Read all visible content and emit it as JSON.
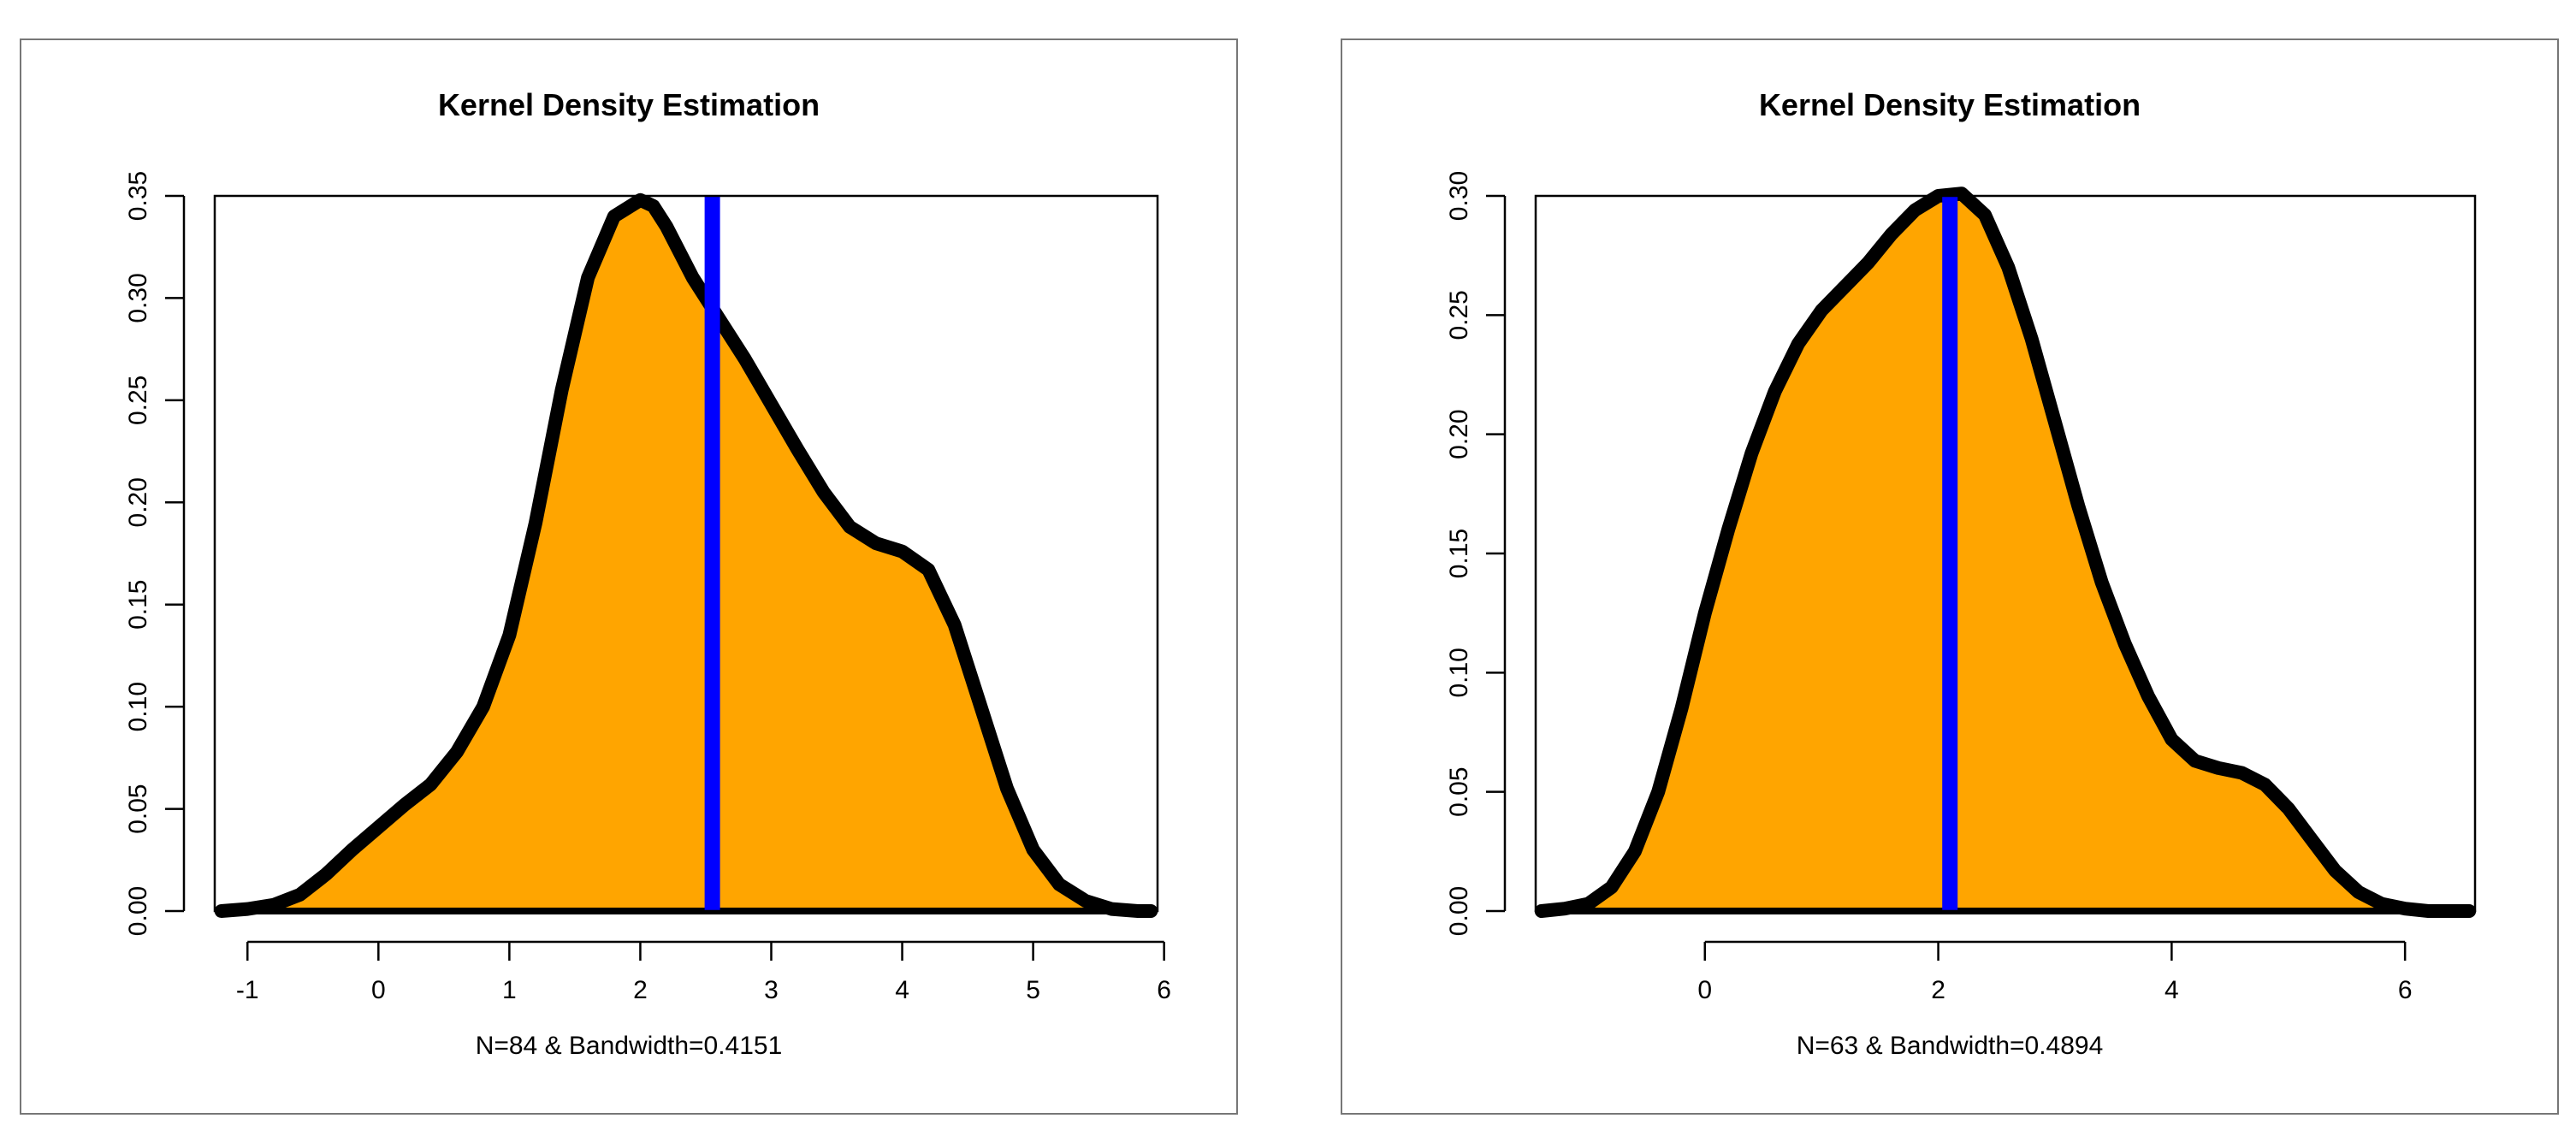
{
  "chart_data": [
    {
      "type": "area",
      "title": "Kernel Density Estimation",
      "xlabel": "N=84 & Bandwidth=0.4151",
      "ylabel": "",
      "xlim": [
        -1.25,
        5.95
      ],
      "ylim": [
        0,
        0.35
      ],
      "xticks": [
        -1,
        0,
        1,
        2,
        3,
        4,
        5,
        6
      ],
      "xtick_labels": [
        "-1",
        "0",
        "1",
        "2",
        "3",
        "4",
        "5",
        "6"
      ],
      "yticks": [
        0.0,
        0.05,
        0.1,
        0.15,
        0.2,
        0.25,
        0.3,
        0.35
      ],
      "ytick_labels": [
        "0.00",
        "0.05",
        "0.10",
        "0.15",
        "0.20",
        "0.25",
        "0.30",
        "0.35"
      ],
      "grid": false,
      "fill_color": "#FFA500",
      "line_color": "#000000",
      "vline_color": "#0000FF",
      "vline_x": 2.55,
      "series": [
        {
          "name": "density",
          "x": [
            -1.2,
            -1.0,
            -0.8,
            -0.6,
            -0.4,
            -0.2,
            0.0,
            0.2,
            0.4,
            0.6,
            0.8,
            1.0,
            1.2,
            1.4,
            1.6,
            1.8,
            2.0,
            2.1,
            2.2,
            2.4,
            2.6,
            2.8,
            3.0,
            3.2,
            3.4,
            3.6,
            3.8,
            4.0,
            4.2,
            4.4,
            4.6,
            4.8,
            5.0,
            5.2,
            5.4,
            5.6,
            5.8,
            5.9
          ],
          "y": [
            0.0,
            0.001,
            0.003,
            0.008,
            0.018,
            0.03,
            0.041,
            0.052,
            0.062,
            0.078,
            0.1,
            0.135,
            0.19,
            0.255,
            0.31,
            0.34,
            0.348,
            0.345,
            0.335,
            0.31,
            0.29,
            0.27,
            0.248,
            0.226,
            0.205,
            0.188,
            0.18,
            0.176,
            0.167,
            0.14,
            0.1,
            0.06,
            0.03,
            0.013,
            0.005,
            0.001,
            0.0,
            0.0
          ]
        }
      ]
    },
    {
      "type": "area",
      "title": "Kernel Density Estimation",
      "xlabel": "N=63 & Bandwidth=0.4894",
      "ylabel": "",
      "xlim": [
        -1.45,
        6.6
      ],
      "ylim": [
        0,
        0.3
      ],
      "xticks": [
        0,
        2,
        4,
        6
      ],
      "xtick_labels": [
        "0",
        "2",
        "4",
        "6"
      ],
      "yticks": [
        0.0,
        0.05,
        0.1,
        0.15,
        0.2,
        0.25,
        0.3
      ],
      "ytick_labels": [
        "0.00",
        "0.05",
        "0.10",
        "0.15",
        "0.20",
        "0.25",
        "0.30"
      ],
      "grid": false,
      "fill_color": "#FFA500",
      "line_color": "#000000",
      "vline_color": "#0000FF",
      "vline_x": 2.1,
      "series": [
        {
          "name": "density",
          "x": [
            -1.4,
            -1.2,
            -1.0,
            -0.8,
            -0.6,
            -0.4,
            -0.2,
            0.0,
            0.2,
            0.4,
            0.6,
            0.8,
            1.0,
            1.2,
            1.4,
            1.6,
            1.8,
            2.0,
            2.2,
            2.4,
            2.6,
            2.8,
            3.0,
            3.2,
            3.4,
            3.6,
            3.8,
            4.0,
            4.2,
            4.4,
            4.6,
            4.8,
            5.0,
            5.2,
            5.4,
            5.6,
            5.8,
            6.0,
            6.2,
            6.4,
            6.55
          ],
          "y": [
            0.0,
            0.001,
            0.003,
            0.01,
            0.025,
            0.05,
            0.085,
            0.125,
            0.16,
            0.192,
            0.218,
            0.238,
            0.252,
            0.262,
            0.272,
            0.284,
            0.294,
            0.3,
            0.301,
            0.292,
            0.27,
            0.24,
            0.205,
            0.17,
            0.138,
            0.112,
            0.09,
            0.072,
            0.063,
            0.06,
            0.058,
            0.053,
            0.043,
            0.03,
            0.017,
            0.008,
            0.003,
            0.001,
            0.0,
            0.0,
            0.0
          ]
        }
      ]
    }
  ]
}
